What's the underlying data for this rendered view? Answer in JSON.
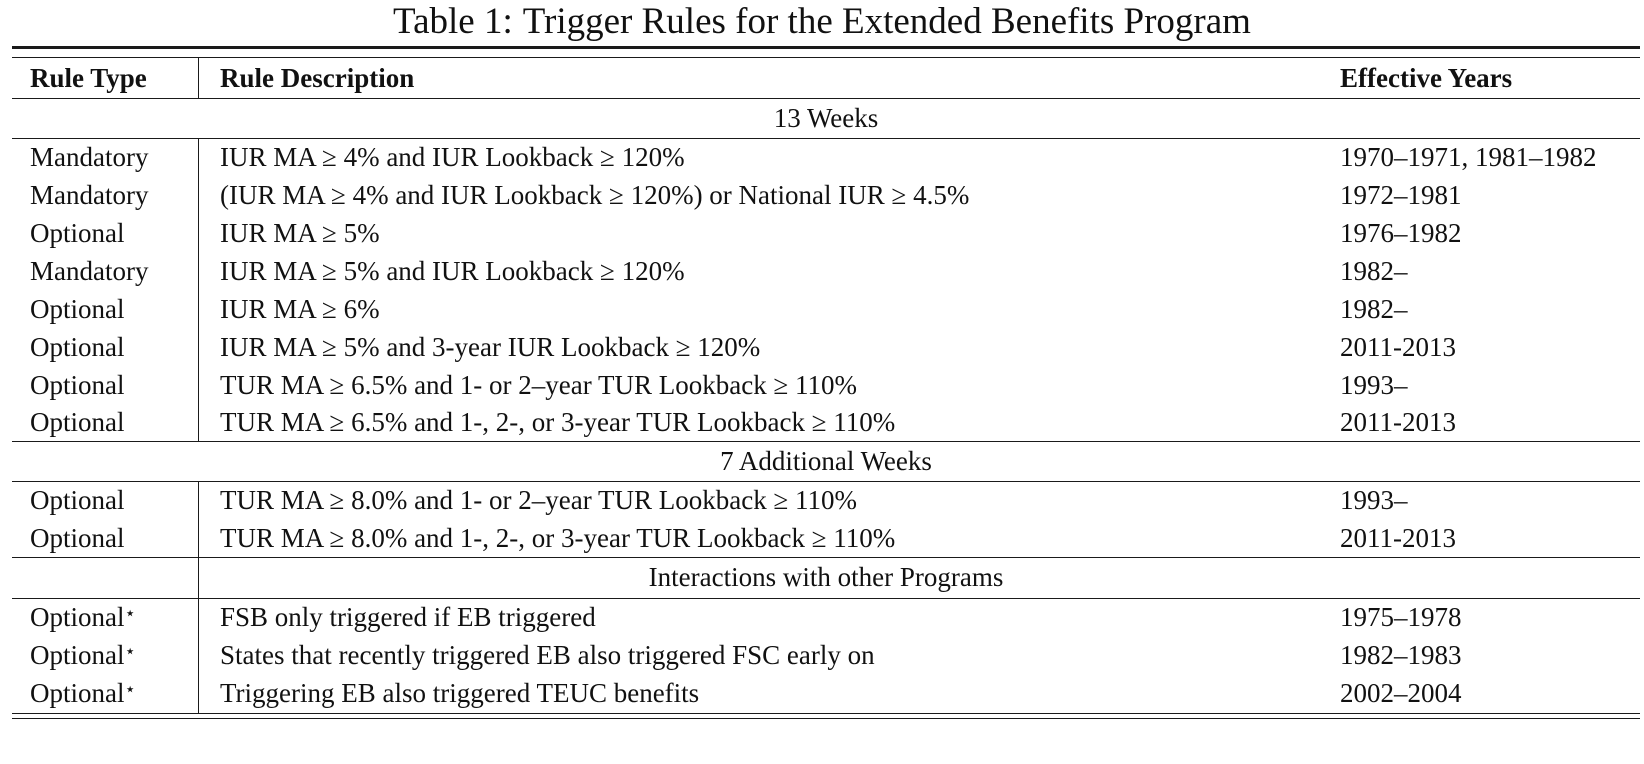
{
  "table": {
    "caption_label": "Table 1:",
    "caption_title": "Trigger Rules for the Extended Benefits Program",
    "headers": {
      "rule_type": "Rule Type",
      "rule_description": "Rule Description",
      "effective_years": "Effective Years"
    },
    "groups": [
      {
        "title": "13 Weeks",
        "rows": [
          {
            "type": "Mandatory",
            "description": "IUR MA ≥ 4% and IUR Lookback ≥ 120%",
            "years": "1970–1971, 1981–1982"
          },
          {
            "type": "Mandatory",
            "description": "(IUR MA ≥ 4% and IUR Lookback ≥ 120%) or National IUR ≥ 4.5%",
            "years": "1972–1981"
          },
          {
            "type": "Optional",
            "description": "IUR MA ≥ 5%",
            "years": "1976–1982"
          },
          {
            "type": "Mandatory",
            "description": "IUR MA ≥ 5% and IUR Lookback ≥ 120%",
            "years": "1982–"
          },
          {
            "type": "Optional",
            "description": "IUR MA ≥ 6%",
            "years": "1982–"
          },
          {
            "type": "Optional",
            "description": "IUR MA ≥ 5% and 3-year IUR Lookback ≥ 120%",
            "years": "2011-2013"
          },
          {
            "type": "Optional",
            "description": "TUR MA ≥ 6.5% and 1- or 2–year TUR Lookback ≥ 110%",
            "years": "1993–"
          },
          {
            "type": "Optional",
            "description": "TUR MA ≥ 6.5% and 1-, 2-, or 3-year TUR Lookback ≥ 110%",
            "years": "2011-2013"
          }
        ]
      },
      {
        "title": "7 Additional Weeks",
        "rows": [
          {
            "type": "Optional",
            "description": "TUR MA ≥ 8.0% and 1- or 2–year TUR Lookback ≥ 110%",
            "years": "1993–"
          },
          {
            "type": "Optional",
            "description": "TUR MA ≥ 8.0% and 1-, 2-, or 3-year TUR Lookback ≥ 110%",
            "years": "2011-2013"
          }
        ]
      },
      {
        "title": "Interactions with other Programs",
        "rows": [
          {
            "type": "Optional",
            "star": "⋆",
            "description": "FSB only triggered if EB triggered",
            "years": "1975–1978"
          },
          {
            "type": "Optional",
            "star": "⋆",
            "description": "States that recently triggered EB also triggered FSC early on",
            "years": "1982–1983"
          },
          {
            "type": "Optional",
            "star": "⋆",
            "description": "Triggering EB also triggered TEUC benefits",
            "years": "2002–2004"
          }
        ]
      }
    ]
  }
}
